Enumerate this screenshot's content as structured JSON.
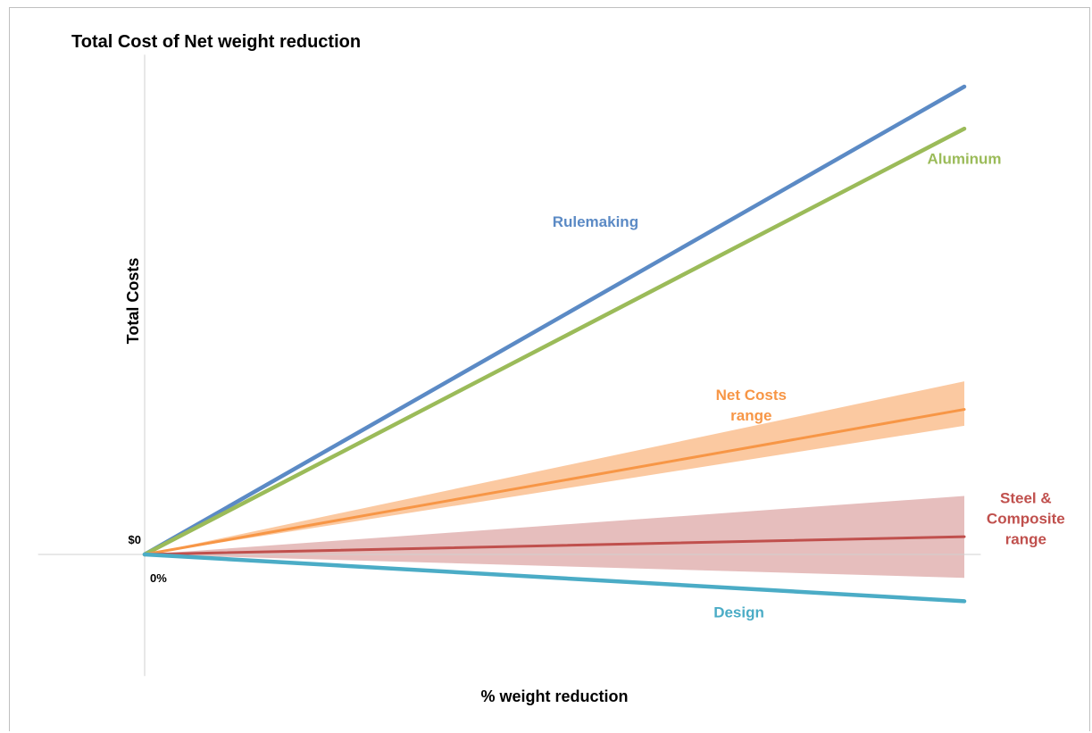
{
  "chart_data": {
    "type": "line",
    "title": "Total Cost of Net weight reduction",
    "xlabel": "% weight reduction",
    "ylabel": "Total Costs",
    "x_tick_labels": [
      "0%"
    ],
    "y_tick_labels": [
      "$0"
    ],
    "x": [
      0,
      1
    ],
    "xlim": [
      -0.13,
      1.02
    ],
    "ylim": [
      -0.26,
      1.03
    ],
    "grid": false,
    "legend": "none",
    "series": [
      {
        "name": "Rulemaking",
        "color": "#5B8AC5",
        "values": [
          0,
          1.0
        ],
        "label_lines": [
          "Rulemaking"
        ],
        "label_anchor": {
          "x": 0.55,
          "y": 0.7
        }
      },
      {
        "name": "Aluminum",
        "color": "#9BBB59",
        "values": [
          0,
          0.91
        ],
        "label_lines": [
          "Aluminum"
        ],
        "label_anchor": {
          "x": 1.0,
          "y": 0.835
        }
      },
      {
        "name": "Net Costs range",
        "color": "#F79646",
        "band_color": "#FAC090",
        "values": [
          0,
          0.31
        ],
        "band_low": [
          0,
          0.275
        ],
        "band_high": [
          0,
          0.37
        ],
        "label_lines": [
          "Net Costs",
          "range"
        ],
        "label_anchor": {
          "x": 0.74,
          "y": 0.33
        }
      },
      {
        "name": "Steel & Composite range",
        "color": "#C0504D",
        "band_color": "#E2B3B2",
        "values": [
          0,
          0.038
        ],
        "band_low": [
          0,
          -0.05
        ],
        "band_high": [
          0,
          0.125
        ],
        "label_lines": [
          "Steel &",
          "Composite",
          "range"
        ],
        "label_anchor": {
          "x": 1.075,
          "y": 0.11
        }
      },
      {
        "name": "Design",
        "color": "#4BACC6",
        "values": [
          0,
          -0.1
        ],
        "label_lines": [
          "Design"
        ],
        "label_anchor": {
          "x": 0.725,
          "y": -0.135
        }
      }
    ]
  }
}
